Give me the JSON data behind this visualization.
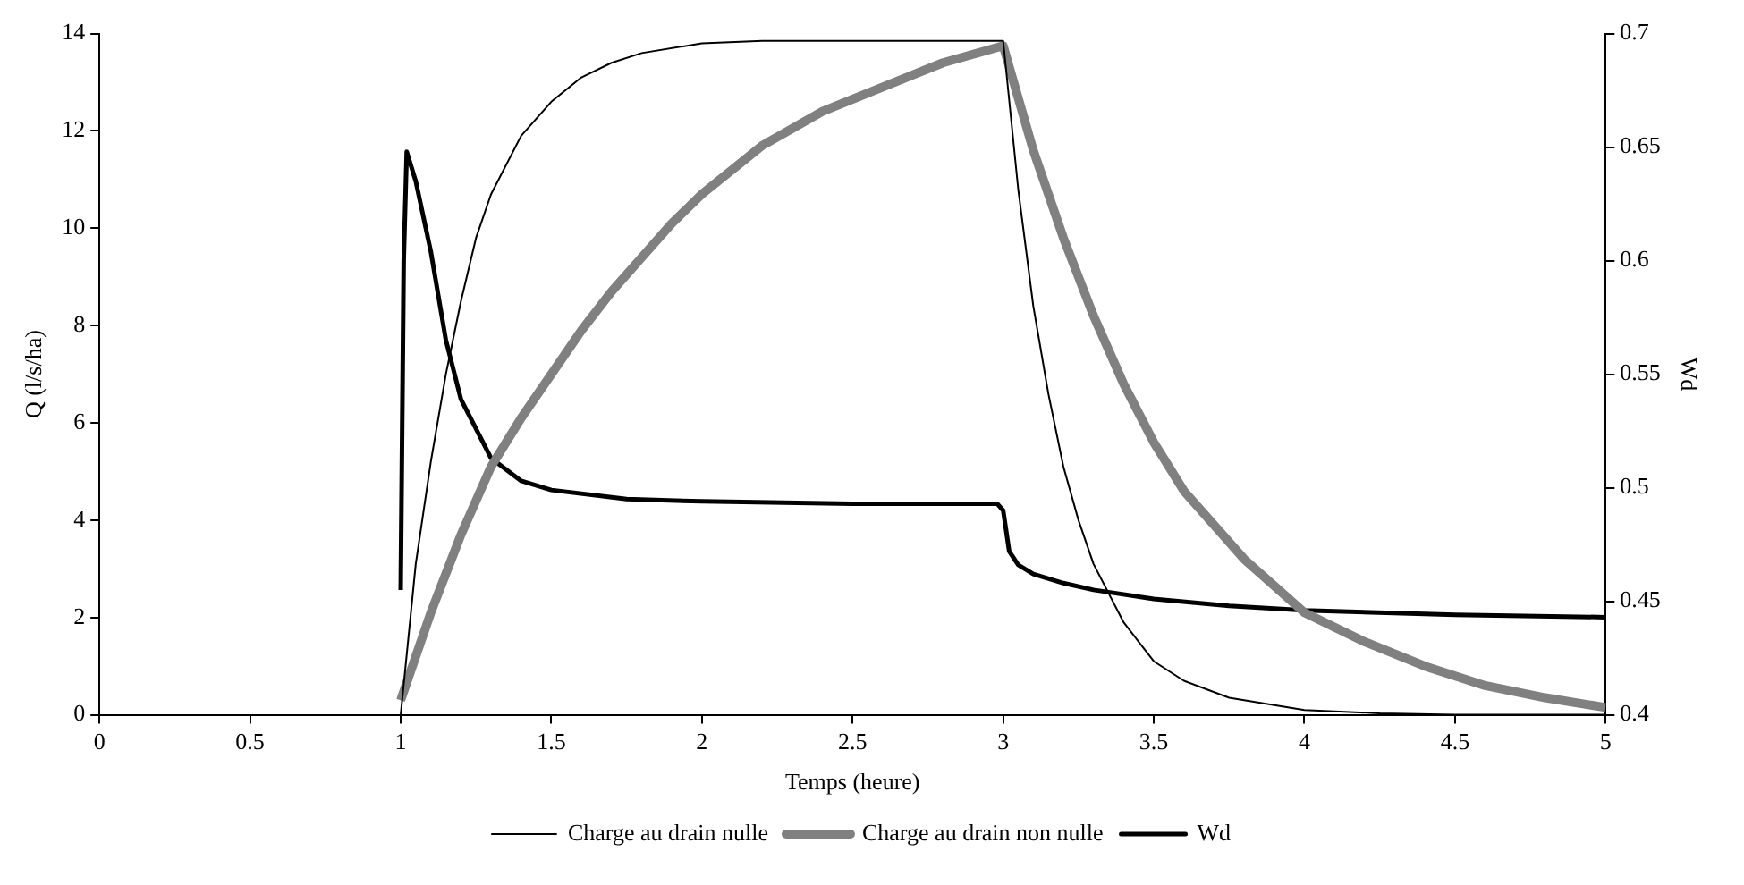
{
  "chart_data": {
    "type": "line",
    "xlabel": "Temps (heure)",
    "ylabel": "Q (l/s/ha)",
    "y2label": "Wd",
    "xlim": [
      0,
      5
    ],
    "xticks": [
      0,
      0.5,
      1,
      1.5,
      2,
      2.5,
      3,
      3.5,
      4,
      4.5,
      5
    ],
    "ylim": [
      0,
      14
    ],
    "yticks": [
      0,
      2,
      4,
      6,
      8,
      10,
      12,
      14
    ],
    "y2lim": [
      0.4,
      0.7
    ],
    "y2ticks": [
      {
        "value": 0.4,
        "label": "0.4"
      },
      0.45,
      {
        "value": 0.5,
        "label": "0.5"
      },
      0.55,
      {
        "value": 0.6,
        "label": "0.6"
      },
      0.65,
      {
        "value": 0.7,
        "label": "0.7"
      }
    ],
    "grid": false,
    "legend": "bottom",
    "marker": "none",
    "line_style": "solid",
    "series": [
      {
        "name": "Charge au drain nulle",
        "color": "#000000",
        "x": [
          1,
          1.05,
          1.1,
          1.15,
          1.2,
          1.25,
          1.3,
          1.4,
          1.5,
          1.6,
          1.7,
          1.8,
          2,
          2.2,
          2.5,
          3,
          3.05,
          3.1,
          3.15,
          3.2,
          3.25,
          3.3,
          3.4,
          3.5,
          3.6,
          3.75,
          4,
          4.25,
          4.5,
          5
        ],
        "values": [
          0,
          3.1,
          5.2,
          7,
          8.5,
          9.8,
          10.7,
          11.9,
          12.6,
          13.1,
          13.4,
          13.6,
          13.8,
          13.85,
          13.85,
          13.85,
          10.8,
          8.4,
          6.6,
          5.1,
          4,
          3.1,
          1.9,
          1.1,
          0.7,
          0.35,
          0.1,
          0.03,
          0,
          0
        ]
      },
      {
        "name": "Charge au drain non nulle",
        "color": "#808080",
        "x": [
          1,
          1.1,
          1.2,
          1.3,
          1.4,
          1.5,
          1.6,
          1.7,
          1.8,
          1.9,
          2,
          2.2,
          2.4,
          2.6,
          2.8,
          3,
          3.1,
          3.2,
          3.3,
          3.4,
          3.5,
          3.6,
          3.8,
          4,
          4.2,
          4.4,
          4.6,
          4.8,
          5
        ],
        "values": [
          0.3,
          2.1,
          3.7,
          5.1,
          6.1,
          7,
          7.9,
          8.7,
          9.4,
          10.1,
          10.7,
          11.7,
          12.4,
          12.9,
          13.4,
          13.75,
          11.6,
          9.8,
          8.2,
          6.8,
          5.6,
          4.6,
          3.2,
          2.1,
          1.5,
          1,
          0.6,
          0.35,
          0.15
        ]
      },
      {
        "name": "Wd",
        "color": "#000000",
        "axis": "y2",
        "x": [
          1,
          1.01,
          1.02,
          1.05,
          1.1,
          1.15,
          1.2,
          1.3,
          1.4,
          1.5,
          1.75,
          2,
          2.5,
          2.98,
          3,
          3.02,
          3.05,
          3.1,
          3.2,
          3.3,
          3.5,
          3.75,
          4,
          4.5,
          5
        ],
        "values": [
          0.455,
          0.6,
          0.648,
          0.635,
          0.604,
          0.565,
          0.539,
          0.513,
          0.503,
          0.499,
          0.495,
          0.494,
          0.493,
          0.493,
          0.49,
          0.472,
          0.466,
          0.462,
          0.458,
          0.455,
          0.451,
          0.448,
          0.446,
          0.444,
          0.443
        ]
      }
    ]
  }
}
